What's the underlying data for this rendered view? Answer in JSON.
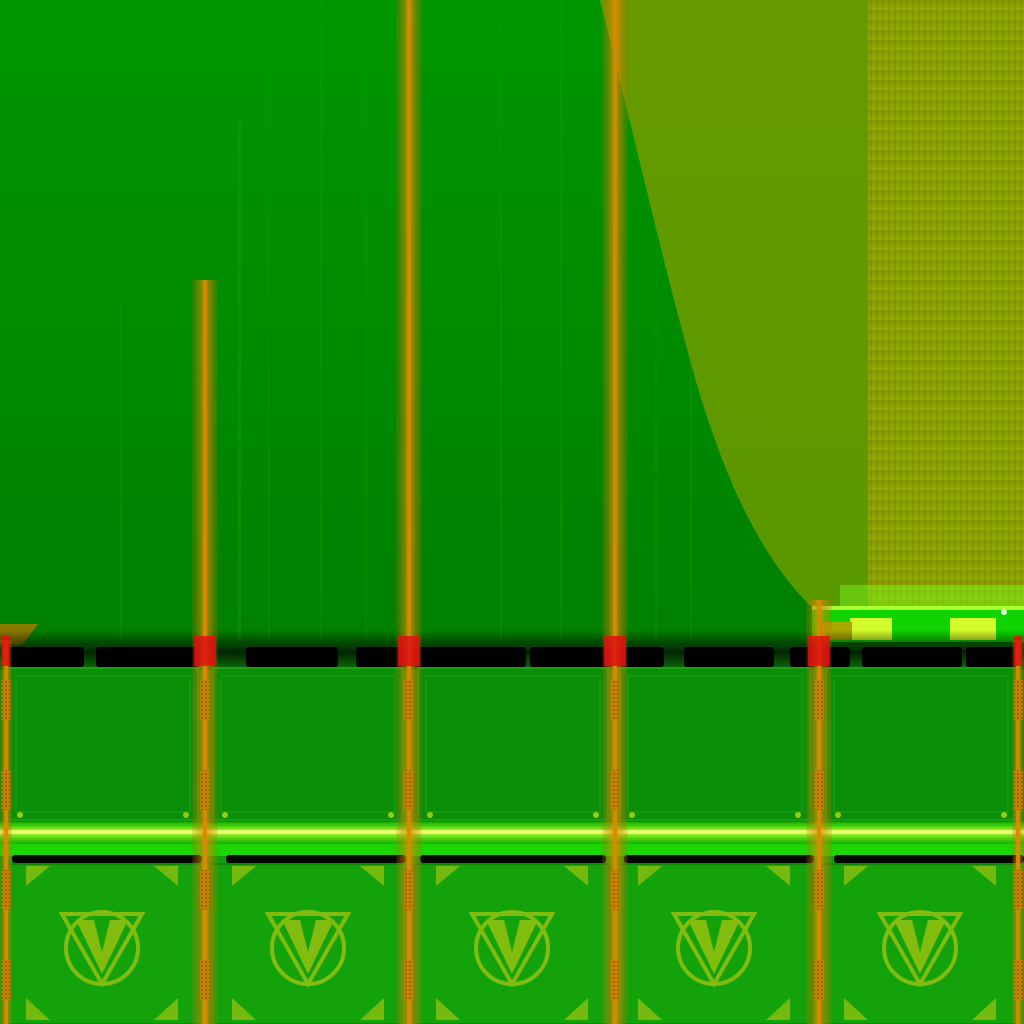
{
  "scene": {
    "type": "game-texture-render",
    "floor_emblem_letter": "V",
    "emblem_count": 5,
    "pillar_count": 5,
    "colors": {
      "sky_green": "#009000",
      "sky_green_dark": "#008a00",
      "olive_curve": "#6a9a00",
      "olive_stripes": "#8aa400",
      "wall_green": "#0b8f08",
      "floor_green": "#13a20a",
      "beam_neon": "#b8ff2a",
      "beam_lime": "#4dff1a",
      "shadow_black": "#000000",
      "pillar_orange": "#d98a00",
      "pillar_red": "#e01010",
      "emblem_olive": "#8fbf10"
    }
  }
}
